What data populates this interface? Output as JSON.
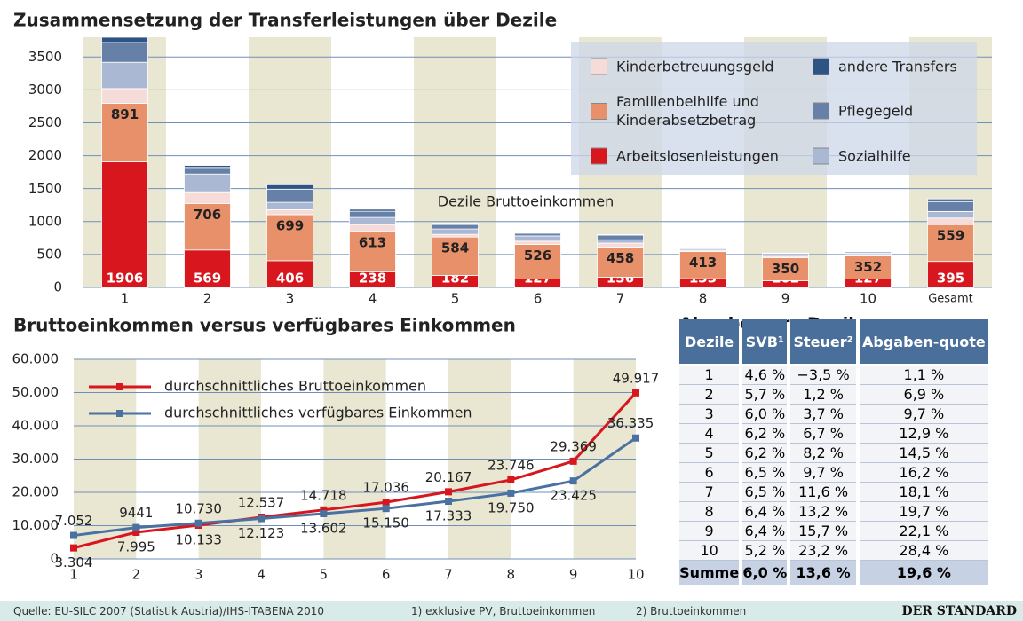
{
  "chart_data": [
    {
      "type": "bar",
      "stacked": true,
      "title": "Zusammensetzung der Transferleistungen über Dezile",
      "annotation": "Dezile Bruttoeinkommen",
      "categories": [
        "1",
        "2",
        "3",
        "4",
        "5",
        "6",
        "7",
        "8",
        "9",
        "10",
        "Gesamt"
      ],
      "ylim": [
        0,
        3800
      ],
      "yticks": [
        0,
        500,
        1000,
        1500,
        2000,
        2500,
        3000,
        3500
      ],
      "grid": true,
      "series": [
        {
          "name": "Arbeitslosenleistungen",
          "color": "#d7161e",
          "labels": true,
          "values": [
            1906,
            569,
            406,
            238,
            182,
            127,
            156,
            133,
            102,
            127,
            395
          ]
        },
        {
          "name": "Familienbeihilfe und Kinderabsetzbetrag",
          "color": "#e8906a",
          "labels": true,
          "values": [
            891,
            706,
            699,
            613,
            584,
            526,
            458,
            413,
            350,
            352,
            559
          ]
        },
        {
          "name": "Kinderbetreuungsgeld",
          "color": "#f6dcd8",
          "labels": false,
          "values": [
            223,
            178,
            75,
            104,
            40,
            50,
            60,
            20,
            20,
            20,
            100
          ]
        },
        {
          "name": "Sozialhilfe",
          "color": "#aab8d4",
          "labels": false,
          "values": [
            400,
            269,
            112,
            108,
            82,
            80,
            50,
            20,
            20,
            20,
            100
          ]
        },
        {
          "name": "Pflegegeld",
          "color": "#6680a8",
          "labels": false,
          "values": [
            300,
            100,
            200,
            94,
            67,
            40,
            70,
            20,
            20,
            20,
            150
          ]
        },
        {
          "name": "andere Transfers",
          "color": "#2e5485",
          "labels": false,
          "values": [
            80,
            30,
            80,
            30,
            20,
            10,
            10,
            10,
            10,
            10,
            40
          ]
        }
      ]
    },
    {
      "type": "line",
      "title": "Bruttoeinkommen versus verfügbares Einkommen",
      "x": [
        1,
        2,
        3,
        4,
        5,
        6,
        7,
        8,
        9,
        10
      ],
      "xlim": [
        1,
        10
      ],
      "xticks": [
        1,
        2,
        3,
        4,
        5,
        6,
        7,
        8,
        9,
        10
      ],
      "ylim": [
        0,
        60000
      ],
      "yticks": [
        0,
        {
          "value": 10000,
          "label": "10.000"
        },
        {
          "value": 20000,
          "label": "20.000"
        },
        {
          "value": 30000,
          "label": "30.000"
        },
        {
          "value": 40000,
          "label": "40.000"
        },
        {
          "value": 50000,
          "label": "50.000"
        },
        {
          "value": 60000,
          "label": "60.000"
        }
      ],
      "grid": true,
      "series": [
        {
          "name": "durchschnittliches Bruttoeinkommen",
          "color": "#d7161e",
          "values": [
            3304,
            7995,
            10133,
            12537,
            14718,
            17036,
            20167,
            23746,
            29369,
            49917
          ],
          "value_labels": [
            "3.304",
            "7.995",
            "10.133",
            "12.537",
            "14.718",
            "17.036",
            "20.167",
            "23.746",
            "29.369",
            "49.917"
          ]
        },
        {
          "name": "durchschnittliches verfügbares Einkommen",
          "color": "#4a72a0",
          "values": [
            7052,
            9441,
            10730,
            12123,
            13602,
            15150,
            17333,
            19750,
            23425,
            36335
          ],
          "value_labels": [
            "7.052",
            "9441",
            "10.730",
            "12.123",
            "13.602",
            "15.150",
            "17.333",
            "19.750",
            "23.425",
            "36.335"
          ]
        }
      ]
    }
  ],
  "table": {
    "title": "Abgaben pro Dezil",
    "header": [
      "Dezile",
      "SVB¹",
      "Steuer²",
      "Abgaben-quote"
    ],
    "rows": [
      [
        "1",
        "4,6 %",
        "−3,5 %",
        "1,1 %"
      ],
      [
        "2",
        "5,7 %",
        "1,2 %",
        "6,9 %"
      ],
      [
        "3",
        "6,0 %",
        "3,7 %",
        "9,7 %"
      ],
      [
        "4",
        "6,2 %",
        "6,7 %",
        "12,9 %"
      ],
      [
        "5",
        "6,2 %",
        "8,2 %",
        "14,5 %"
      ],
      [
        "6",
        "6,5 %",
        "9,7 %",
        "16,2 %"
      ],
      [
        "7",
        "6,5 %",
        "11,6 %",
        "18,1 %"
      ],
      [
        "8",
        "6,4 %",
        "13,2 %",
        "19,7 %"
      ],
      [
        "9",
        "6,4 %",
        "15,7 %",
        "22,1 %"
      ],
      [
        "10",
        "5,2 %",
        "23,2 %",
        "28,4 %"
      ]
    ],
    "summary": [
      "Summe",
      "6,0 %",
      "13,6 %",
      "19,6 %"
    ]
  },
  "footer": {
    "source": "Quelle: EU-SILC 2007 (Statistik Austria)/IHS-ITABENA 2010",
    "note1": "1) exklusive PV, Bruttoeinkommen",
    "note2": "2) Bruttoeinkommen",
    "brand": "DER STANDARD"
  }
}
